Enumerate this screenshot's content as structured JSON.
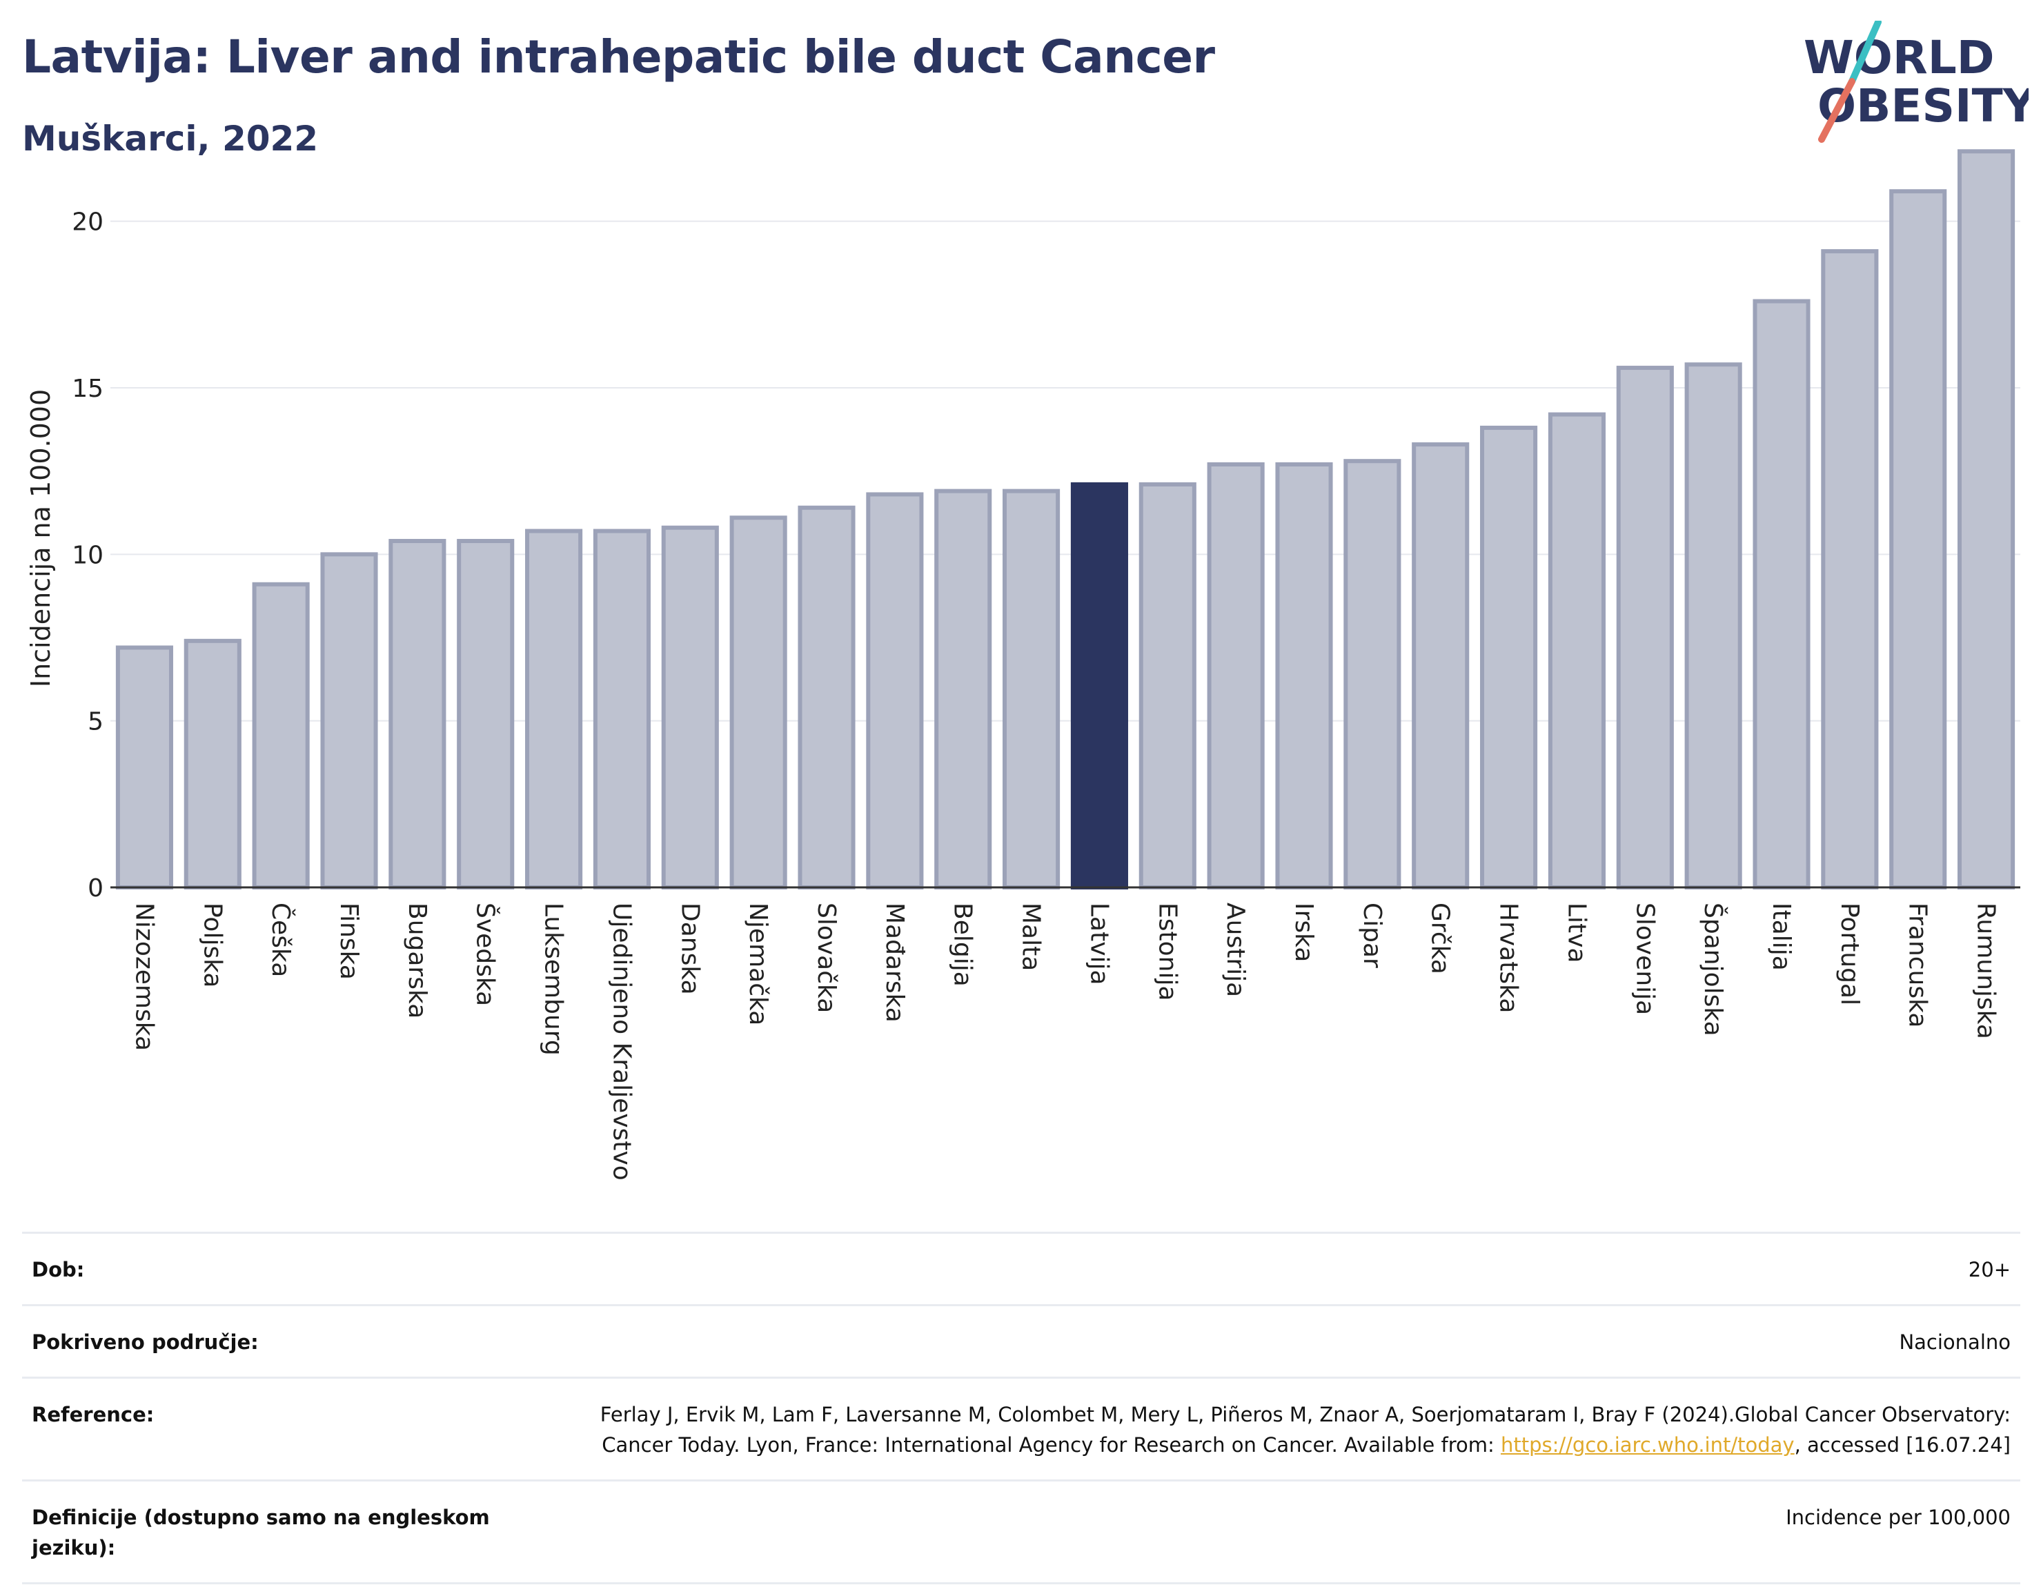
{
  "header": {
    "title": "Latvija: Liver and intrahepatic bile duct Cancer",
    "subtitle": "Muškarci, 2022"
  },
  "logo": {
    "line1": "WORLD",
    "line2": "OBESITY",
    "accent_colors": [
      "#3bbfc3",
      "#e4715f"
    ]
  },
  "chart_data": {
    "type": "bar",
    "title": "Latvija: Liver and intrahepatic bile duct Cancer",
    "subtitle": "Muškarci, 2022",
    "ylabel": "Incidencija na 100.000",
    "xlabel": "",
    "ylim": [
      0,
      22.5
    ],
    "yticks": [
      0,
      5,
      10,
      15,
      20
    ],
    "grid": true,
    "highlight": "Latvija",
    "colors": {
      "bar": "#bec2d0",
      "bar_border": "#9ca2b8",
      "highlight": "#2b3560"
    },
    "categories": [
      "Nizozemska",
      "Poljska",
      "Češka",
      "Finska",
      "Bugarska",
      "Švedska",
      "Luksemburg",
      "Ujedinjeno Kraljevstvo",
      "Danska",
      "Njemačka",
      "Slovačka",
      "Mađarska",
      "Belgija",
      "Malta",
      "Latvija",
      "Estonija",
      "Austrija",
      "Irska",
      "Cipar",
      "Grčka",
      "Hrvatska",
      "Litva",
      "Slovenija",
      "Španjolska",
      "Italija",
      "Portugal",
      "Francuska",
      "Rumunjska"
    ],
    "values": [
      7.2,
      7.4,
      9.1,
      10.0,
      10.4,
      10.4,
      10.7,
      10.7,
      10.8,
      11.1,
      11.4,
      11.8,
      11.9,
      11.9,
      12.1,
      12.1,
      12.7,
      12.7,
      12.8,
      13.3,
      13.8,
      14.2,
      15.6,
      15.7,
      17.6,
      19.1,
      20.9,
      22.1
    ]
  },
  "meta": [
    {
      "label": "Dob:",
      "value": "20+"
    },
    {
      "label": "Pokriveno područje:",
      "value": "Nacionalno"
    },
    {
      "label": "Reference:",
      "value_pre": "Ferlay J, Ervik M, Lam F, Laversanne M, Colombet M, Mery L, Piñeros M, Znaor A, Soerjomataram I, Bray F (2024).Global Cancer Observatory: Cancer Today. Lyon, France: International Agency for Research on Cancer. Available from: ",
      "link": "https://gco.iarc.who.int/today",
      "value_post": ", accessed [16.07.24]"
    },
    {
      "label": "Definicije (dostupno samo na engleskom jeziku):",
      "value": "Incidence per 100,000"
    }
  ]
}
